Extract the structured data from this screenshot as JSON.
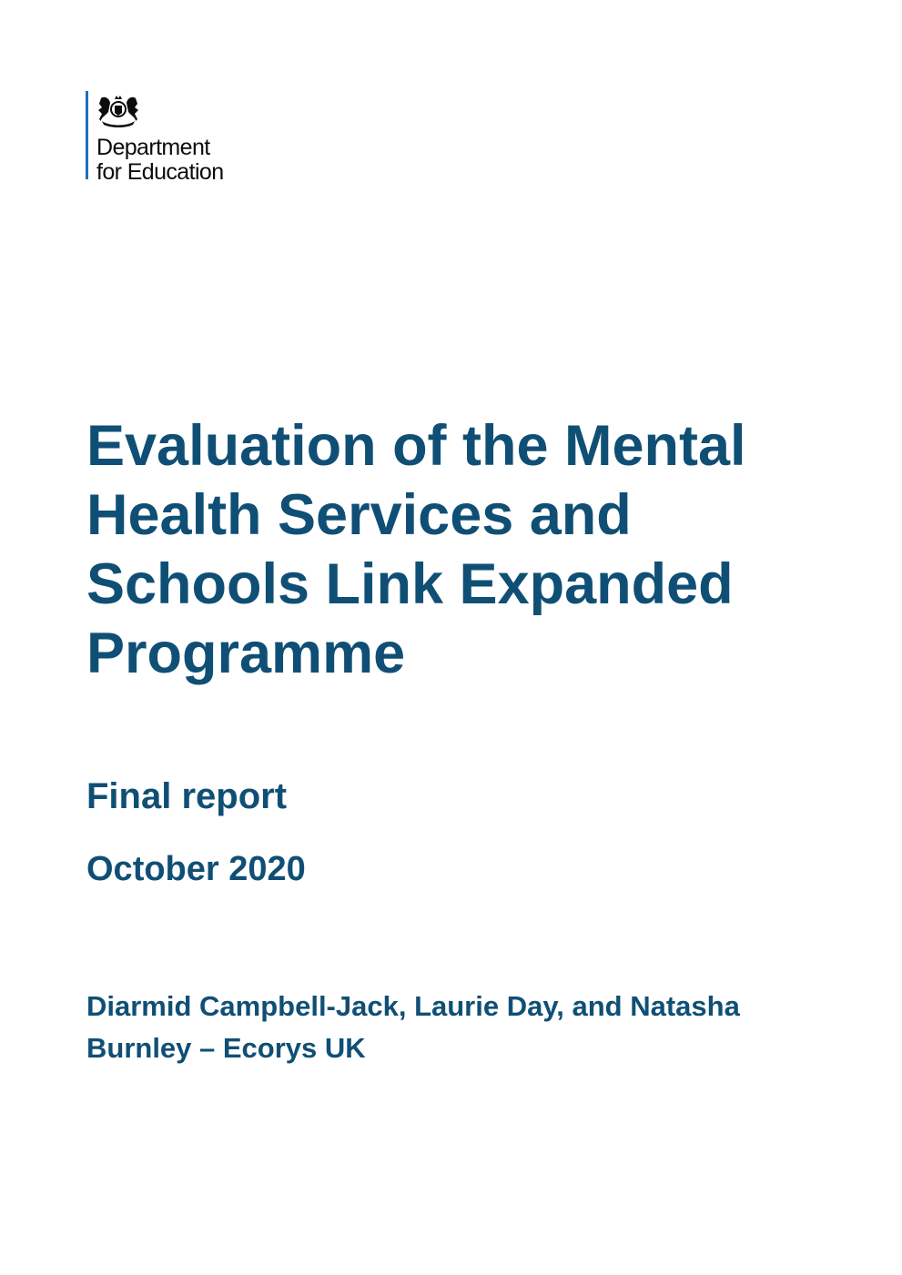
{
  "logo": {
    "line1": "Department",
    "line2": "for Education",
    "icon": "royal-coat-of-arms"
  },
  "title": "Evaluation of the Mental Health Services and Schools Link Expanded Programme",
  "subtitle": "Final report",
  "date": "October 2020",
  "authors": "Diarmid Campbell-Jack, Laurie Day, and Natasha Burnley – Ecorys UK",
  "colors": {
    "title": "#104f75",
    "logo_rule": "#1d70b8"
  }
}
